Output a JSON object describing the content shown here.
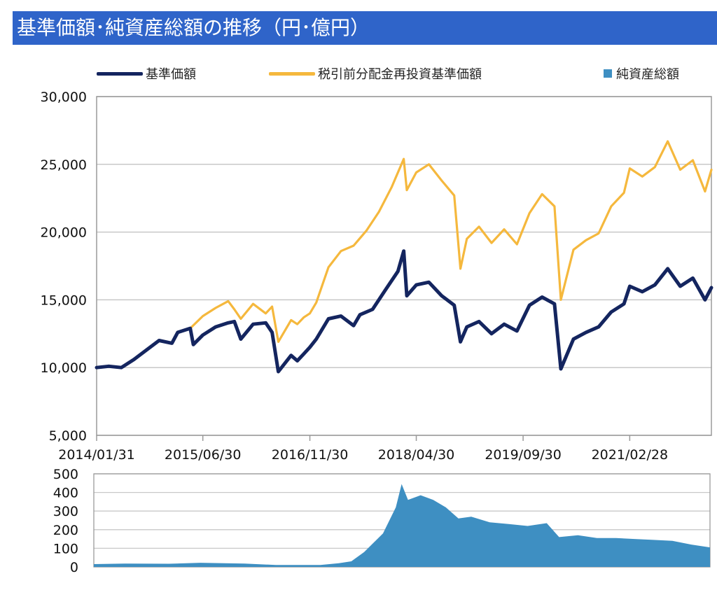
{
  "title": "基準価額･純資産総額の推移（円･億円）",
  "colors": {
    "title_bg": "#2f64c9",
    "nav": "#14255f",
    "reinvested": "#f5b83d",
    "assets": "#3e8fc2",
    "grid": "#c8c8c8"
  },
  "legend": [
    {
      "label": "基準価額",
      "color": "#14255f",
      "shape": "line"
    },
    {
      "label": "税引前分配金再投資基準価額",
      "color": "#f5b83d",
      "shape": "line"
    },
    {
      "label": "純資産総額",
      "color": "#3e8fc2",
      "shape": "square"
    }
  ],
  "chart_data": [
    {
      "type": "line",
      "title": "",
      "ylim": [
        5000,
        30000
      ],
      "y_ticks": [
        "5,000",
        "10,000",
        "15,000",
        "20,000",
        "25,000",
        "30,000"
      ],
      "y_tick_values": [
        5000,
        10000,
        15000,
        20000,
        25000,
        30000
      ],
      "x_tick_labels": [
        "2014/01/31",
        "2015/06/30",
        "2016/11/30",
        "2018/04/30",
        "2019/09/30",
        "2021/02/28"
      ],
      "x_range": [
        "2014/01/31",
        "2022/03/31"
      ],
      "grid": true,
      "legend_position": "top",
      "series": [
        {
          "name": "基準価額",
          "color": "#14255f",
          "points": [
            [
              "2014/01/31",
              10000
            ],
            [
              "2014/03/31",
              10100
            ],
            [
              "2014/05/31",
              10000
            ],
            [
              "2014/07/31",
              10600
            ],
            [
              "2014/09/30",
              11300
            ],
            [
              "2014/11/30",
              12000
            ],
            [
              "2015/01/31",
              11800
            ],
            [
              "2015/02/28",
              12600
            ],
            [
              "2015/04/30",
              12900
            ],
            [
              "2015/05/15",
              11700
            ],
            [
              "2015/06/30",
              12400
            ],
            [
              "2015/08/31",
              13000
            ],
            [
              "2015/10/31",
              13300
            ],
            [
              "2015/11/30",
              13400
            ],
            [
              "2015/12/31",
              12100
            ],
            [
              "2016/02/29",
              13200
            ],
            [
              "2016/04/30",
              13300
            ],
            [
              "2016/05/31",
              12600
            ],
            [
              "2016/06/30",
              9700
            ],
            [
              "2016/08/31",
              10900
            ],
            [
              "2016/09/30",
              10500
            ],
            [
              "2016/10/31",
              11000
            ],
            [
              "2016/11/30",
              11500
            ],
            [
              "2016/12/31",
              12100
            ],
            [
              "2017/02/28",
              13600
            ],
            [
              "2017/04/30",
              13800
            ],
            [
              "2017/06/30",
              13100
            ],
            [
              "2017/07/31",
              13900
            ],
            [
              "2017/09/30",
              14300
            ],
            [
              "2017/11/30",
              15700
            ],
            [
              "2018/01/31",
              17100
            ],
            [
              "2018/02/28",
              18600
            ],
            [
              "2018/03/15",
              15300
            ],
            [
              "2018/04/30",
              16100
            ],
            [
              "2018/06/30",
              16300
            ],
            [
              "2018/08/31",
              15300
            ],
            [
              "2018/10/31",
              14600
            ],
            [
              "2018/11/30",
              11900
            ],
            [
              "2018/12/31",
              13000
            ],
            [
              "2019/02/28",
              13400
            ],
            [
              "2019/04/30",
              12500
            ],
            [
              "2019/06/30",
              13200
            ],
            [
              "2019/08/31",
              12700
            ],
            [
              "2019/10/31",
              14600
            ],
            [
              "2019/12/31",
              15200
            ],
            [
              "2020/02/29",
              14700
            ],
            [
              "2020/03/31",
              9900
            ],
            [
              "2020/05/31",
              12100
            ],
            [
              "2020/07/31",
              12600
            ],
            [
              "2020/09/30",
              13000
            ],
            [
              "2020/11/30",
              14100
            ],
            [
              "2021/01/31",
              14700
            ],
            [
              "2021/02/28",
              16000
            ],
            [
              "2021/04/30",
              15600
            ],
            [
              "2021/06/30",
              16100
            ],
            [
              "2021/08/31",
              17300
            ],
            [
              "2021/10/31",
              16000
            ],
            [
              "2021/12/31",
              16600
            ],
            [
              "2022/02/28",
              15000
            ],
            [
              "2022/03/31",
              15900
            ]
          ]
        },
        {
          "name": "税引前分配金再投資基準価額",
          "color": "#f5b83d",
          "points": [
            [
              "2014/01/31",
              10000
            ],
            [
              "2014/03/31",
              10100
            ],
            [
              "2014/05/31",
              10000
            ],
            [
              "2014/07/31",
              10600
            ],
            [
              "2014/09/30",
              11300
            ],
            [
              "2014/11/30",
              12000
            ],
            [
              "2015/01/31",
              11800
            ],
            [
              "2015/02/28",
              12600
            ],
            [
              "2015/04/30",
              12900
            ],
            [
              "2015/06/30",
              13800
            ],
            [
              "2015/08/31",
              14400
            ],
            [
              "2015/10/31",
              14900
            ],
            [
              "2015/11/30",
              14300
            ],
            [
              "2015/12/31",
              13600
            ],
            [
              "2016/02/29",
              14700
            ],
            [
              "2016/04/30",
              14000
            ],
            [
              "2016/05/31",
              14500
            ],
            [
              "2016/06/30",
              11900
            ],
            [
              "2016/08/31",
              13500
            ],
            [
              "2016/09/30",
              13200
            ],
            [
              "2016/10/31",
              13700
            ],
            [
              "2016/11/30",
              14000
            ],
            [
              "2016/12/31",
              14800
            ],
            [
              "2017/02/28",
              17400
            ],
            [
              "2017/04/30",
              18600
            ],
            [
              "2017/06/30",
              19000
            ],
            [
              "2017/08/31",
              20100
            ],
            [
              "2017/10/31",
              21500
            ],
            [
              "2017/12/31",
              23300
            ],
            [
              "2018/02/28",
              25400
            ],
            [
              "2018/03/15",
              23100
            ],
            [
              "2018/04/30",
              24400
            ],
            [
              "2018/06/30",
              25000
            ],
            [
              "2018/08/31",
              23800
            ],
            [
              "2018/10/31",
              22700
            ],
            [
              "2018/11/30",
              17300
            ],
            [
              "2018/12/31",
              19500
            ],
            [
              "2019/02/28",
              20400
            ],
            [
              "2019/04/30",
              19200
            ],
            [
              "2019/06/30",
              20200
            ],
            [
              "2019/08/31",
              19100
            ],
            [
              "2019/10/31",
              21400
            ],
            [
              "2019/12/31",
              22800
            ],
            [
              "2020/02/29",
              21900
            ],
            [
              "2020/03/31",
              15000
            ],
            [
              "2020/05/31",
              18700
            ],
            [
              "2020/07/31",
              19400
            ],
            [
              "2020/09/30",
              19900
            ],
            [
              "2020/11/30",
              21900
            ],
            [
              "2021/01/31",
              22900
            ],
            [
              "2021/02/28",
              24700
            ],
            [
              "2021/04/30",
              24100
            ],
            [
              "2021/06/30",
              24800
            ],
            [
              "2021/08/31",
              26700
            ],
            [
              "2021/10/31",
              24600
            ],
            [
              "2021/12/31",
              25300
            ],
            [
              "2022/02/28",
              23000
            ],
            [
              "2022/03/31",
              24600
            ]
          ]
        }
      ]
    },
    {
      "type": "area",
      "title": "",
      "ylim": [
        0,
        500
      ],
      "y_ticks": [
        "0",
        "100",
        "200",
        "300",
        "400",
        "500"
      ],
      "y_tick_values": [
        0,
        100,
        200,
        300,
        400,
        500
      ],
      "x_range": [
        "2014/01/31",
        "2022/03/31"
      ],
      "grid": true,
      "series": [
        {
          "name": "純資産総額",
          "color": "#3e8fc2",
          "points": [
            [
              "2014/01/31",
              15
            ],
            [
              "2014/06/30",
              18
            ],
            [
              "2015/01/31",
              17
            ],
            [
              "2015/06/30",
              22
            ],
            [
              "2016/01/31",
              18
            ],
            [
              "2016/06/30",
              10
            ],
            [
              "2017/01/31",
              10
            ],
            [
              "2017/04/30",
              20
            ],
            [
              "2017/06/30",
              30
            ],
            [
              "2017/08/31",
              80
            ],
            [
              "2017/11/30",
              180
            ],
            [
              "2018/01/31",
              320
            ],
            [
              "2018/02/28",
              445
            ],
            [
              "2018/03/31",
              360
            ],
            [
              "2018/05/31",
              385
            ],
            [
              "2018/07/31",
              360
            ],
            [
              "2018/09/30",
              320
            ],
            [
              "2018/11/30",
              260
            ],
            [
              "2019/01/31",
              270
            ],
            [
              "2019/04/30",
              240
            ],
            [
              "2019/07/31",
              230
            ],
            [
              "2019/10/31",
              220
            ],
            [
              "2020/01/31",
              235
            ],
            [
              "2020/03/31",
              160
            ],
            [
              "2020/06/30",
              170
            ],
            [
              "2020/09/30",
              155
            ],
            [
              "2020/12/31",
              155
            ],
            [
              "2021/03/31",
              150
            ],
            [
              "2021/06/30",
              145
            ],
            [
              "2021/09/30",
              140
            ],
            [
              "2021/12/31",
              120
            ],
            [
              "2022/03/31",
              105
            ]
          ]
        }
      ]
    }
  ]
}
